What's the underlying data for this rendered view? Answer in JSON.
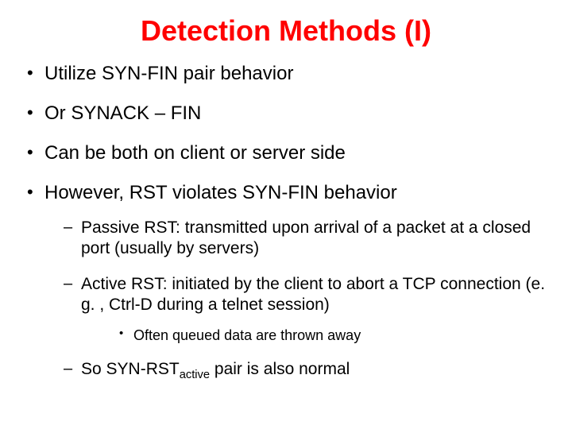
{
  "title": {
    "text": "Detection Methods (I)",
    "color": "#ff0000",
    "fontsize": 36
  },
  "body_color": "#000000",
  "background_color": "#ffffff",
  "font_family": "Comic Sans MS",
  "bullets": {
    "b1": "Utilize SYN-FIN pair behavior",
    "b2": "Or SYNACK – FIN",
    "b3": "Can be both on client or server side",
    "b4": "However, RST  violates SYN-FIN behavior",
    "b4_1": "Passive RST: transmitted upon arrival of a packet at a closed port (usually by servers)",
    "b4_2": "Active RST: initiated by the client to abort a TCP connection (e. g. , Ctrl-D during a telnet session)",
    "b4_2_1": "Often queued data are thrown away",
    "b4_3_pre": "So SYN-RST",
    "b4_3_sub": "active",
    "b4_3_post": " pair is also normal"
  },
  "font_sizes": {
    "level1": 24,
    "level2": 21,
    "level3": 18
  }
}
